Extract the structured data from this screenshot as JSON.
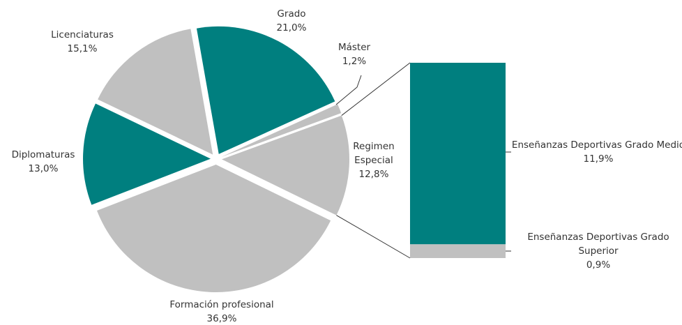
{
  "chart_data": {
    "type": "pie",
    "categories": [
      "Grado",
      "Máster",
      "Regimen Especial",
      "Formación profesional",
      "Diplomaturas",
      "Licenciaturas"
    ],
    "values": [
      21.0,
      1.2,
      12.8,
      36.9,
      13.0,
      15.1
    ],
    "value_labels": [
      "21,0%",
      "1,2%",
      "12,8%",
      "36,9%",
      "13,0%",
      "15,1%"
    ],
    "colors": [
      "#007f7f",
      "#c0c0c0",
      "#c0c0c0",
      "#c0c0c0",
      "#007f7f",
      "#c0c0c0"
    ],
    "bar": {
      "categories": [
        "Enseñanzas Deportivas Grado Medio",
        "Enseñanzas Deportivas Grado Superior"
      ],
      "values": [
        11.9,
        0.9
      ],
      "value_labels": [
        "11,9%",
        "0,9%"
      ],
      "colors": [
        "#007f7f",
        "#c0c0c0"
      ]
    }
  }
}
